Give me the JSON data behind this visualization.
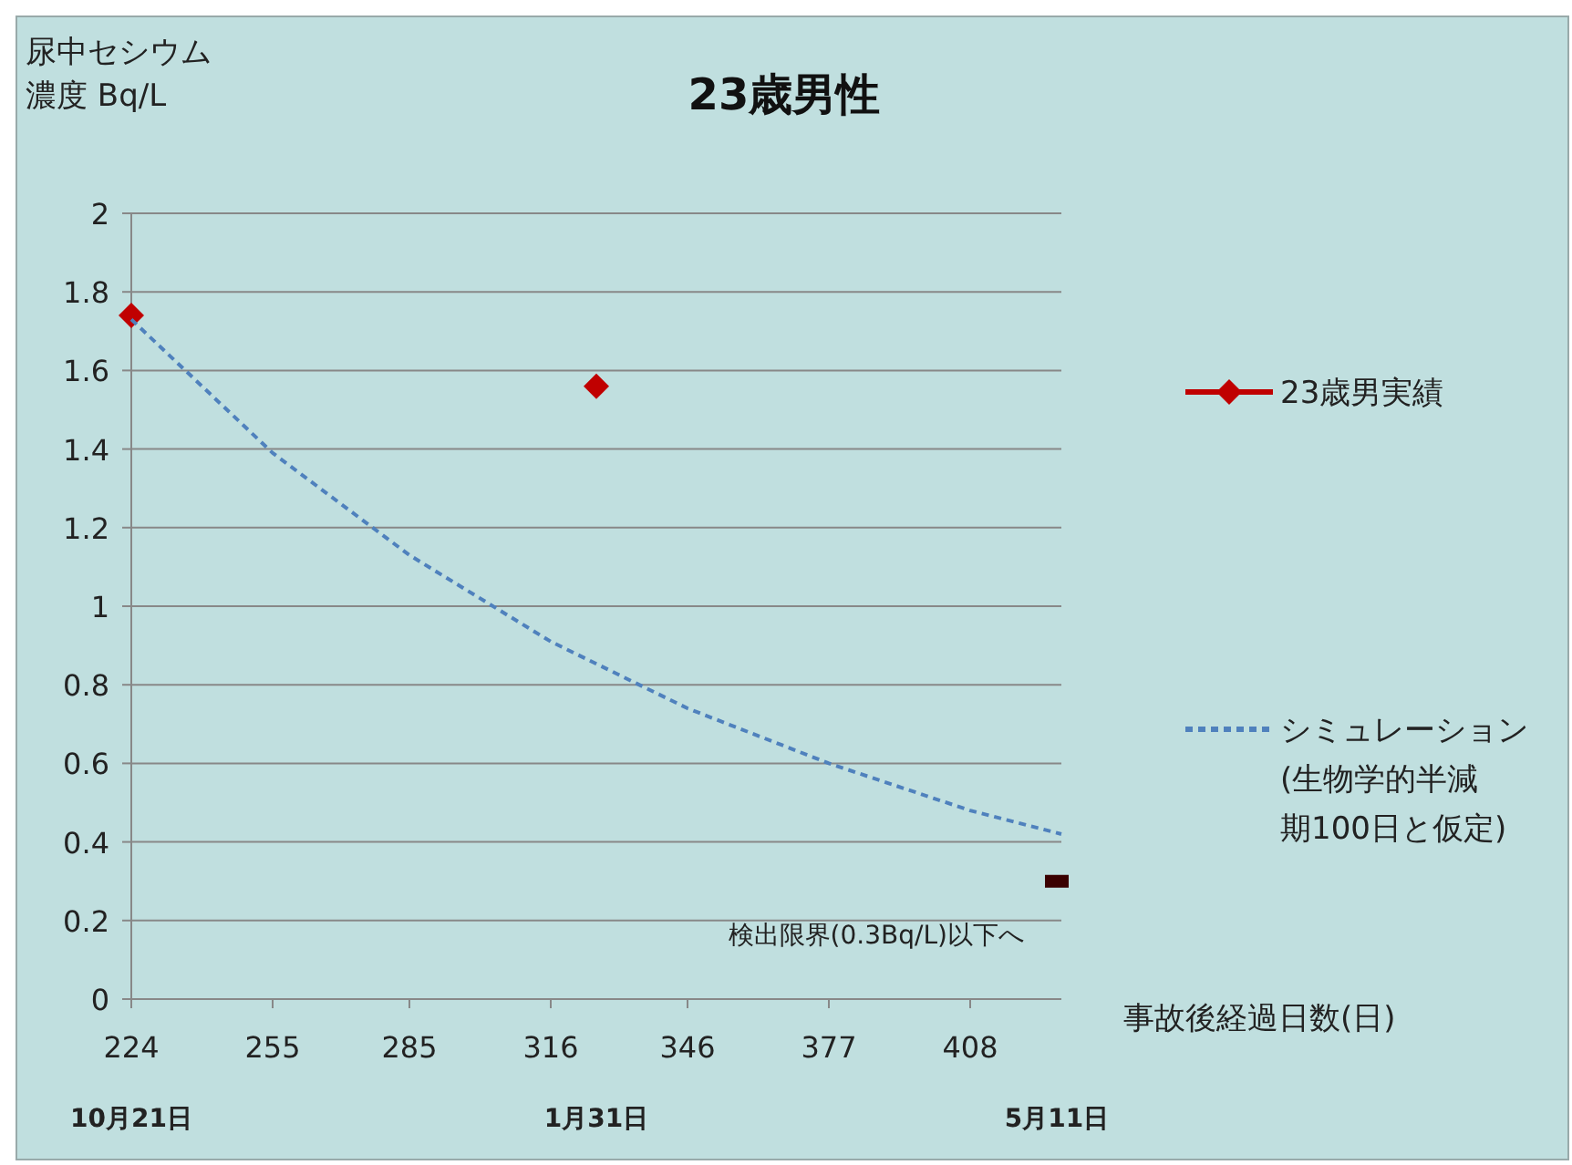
{
  "chart_data": {
    "type": "line",
    "title": "23歳男性",
    "ylabel": "尿中セシウム濃度 Bq/L",
    "xlabel": "事故後経過日数(日)",
    "xlim": [
      224,
      428
    ],
    "xticks": [
      224,
      255,
      285,
      316,
      346,
      377,
      408
    ],
    "ylim": [
      0,
      2
    ],
    "yticks": [
      0,
      0.2,
      0.4,
      0.6,
      0.8,
      1,
      1.2,
      1.4,
      1.6,
      1.8,
      2
    ],
    "grid": "y",
    "legend": "right",
    "series": [
      {
        "name": "23歳男実績",
        "type": "scatter",
        "marker": "diamond",
        "color": "#c00000",
        "x": [
          224,
          326
        ],
        "values": [
          1.74,
          1.56
        ]
      },
      {
        "name": "シミュレーション(生物学的半減期100日と仮定)",
        "line_style": "dashed",
        "marker": "none",
        "color": "#4f81bd",
        "x": [
          224,
          255,
          285,
          316,
          346,
          377,
          408,
          428
        ],
        "values": [
          1.73,
          1.39,
          1.13,
          0.91,
          0.74,
          0.6,
          0.48,
          0.42
        ]
      },
      {
        "type": "scatter",
        "color": "#3a0000",
        "x": [
          427
        ],
        "values": [
          0.3
        ]
      }
    ],
    "annotations": [
      {
        "text": "検出限界(0.3Bq/L)以下へ",
        "x": 427,
        "y": 0.3
      },
      "10月21日",
      "1月31日",
      "5月11日"
    ]
  }
}
